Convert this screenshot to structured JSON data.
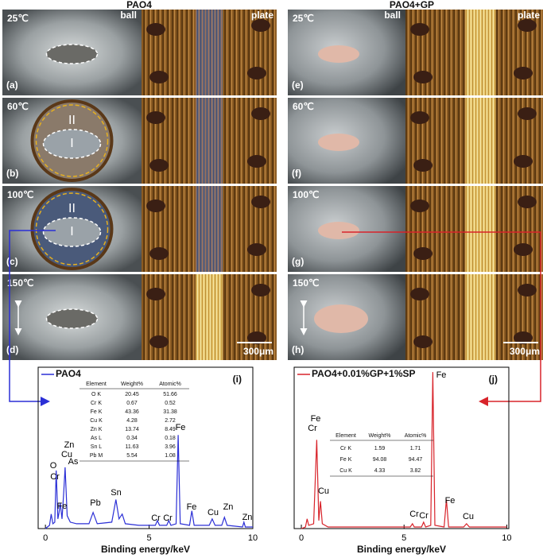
{
  "panels": [
    {
      "title": "PAO4",
      "col_labels": [
        "ball",
        "plate"
      ],
      "scale": "300μm",
      "rows": [
        {
          "temp": "25℃",
          "tag": "(a)"
        },
        {
          "temp": "60℃",
          "tag": "(b)",
          "zones": [
            "II",
            "I"
          ]
        },
        {
          "temp": "100℃",
          "tag": "(c)",
          "zones": [
            "II",
            "I"
          ]
        },
        {
          "temp": "150℃",
          "tag": "(d)"
        }
      ]
    },
    {
      "title": "PAO4+GP",
      "col_labels": [
        "ball",
        "plate"
      ],
      "scale": "300μm",
      "rows": [
        {
          "temp": "25℃",
          "tag": "(e)"
        },
        {
          "temp": "60℃",
          "tag": "(f)"
        },
        {
          "temp": "100℃",
          "tag": "(g)"
        },
        {
          "temp": "150℃",
          "tag": "(h)"
        }
      ]
    }
  ],
  "charts": [
    {
      "type": "line",
      "tag": "(i)",
      "xlabel": "Binding energy/keV",
      "xlim": [
        -0.35,
        10
      ],
      "xticks": [
        0,
        5,
        10
      ],
      "ylim": [
        0,
        100
      ],
      "series": [
        {
          "name": "PAO4",
          "color": "#2b2fd6",
          "x": [
            0,
            0.2,
            0.28,
            0.36,
            0.45,
            0.52,
            0.6,
            0.66,
            0.71,
            0.8,
            0.88,
            0.95,
            1.05,
            1.2,
            1.5,
            2.1,
            2.3,
            2.5,
            3.2,
            3.4,
            3.55,
            3.7,
            3.85,
            4.5,
            5.3,
            5.4,
            5.5,
            5.85,
            5.95,
            6.05,
            6.3,
            6.4,
            6.5,
            6.95,
            7.06,
            7.17,
            7.9,
            8.04,
            8.18,
            8.5,
            8.63,
            8.76,
            9.5,
            9.57,
            9.64,
            10
          ],
          "values": [
            0,
            2,
            9,
            3,
            4,
            36,
            6,
            10,
            16,
            6,
            22,
            38,
            8,
            4,
            3,
            3,
            10,
            3,
            4,
            18,
            6,
            9,
            3,
            2,
            2,
            5,
            2,
            2,
            5,
            2,
            3,
            58,
            3,
            2,
            11,
            2,
            2,
            6,
            2,
            2,
            7,
            2,
            1,
            4,
            1,
            1
          ]
        }
      ],
      "peak_labels": [
        "O",
        "Cr",
        "Zn",
        "Cu",
        "As",
        "Fe",
        "Pb",
        "Sn",
        "Cr",
        "Cr",
        "Fe",
        "Fe",
        "Cu",
        "Zn",
        "Zn"
      ],
      "table": {
        "header": [
          "Element",
          "Weight%",
          "Atomic%"
        ],
        "rows": [
          [
            "O K",
            20.45,
            51.66
          ],
          [
            "Cr K",
            0.67,
            0.52
          ],
          [
            "Fe K",
            43.36,
            31.38
          ],
          [
            "Cu K",
            4.28,
            2.72
          ],
          [
            "Zn K",
            13.74,
            8.49
          ],
          [
            "As L",
            0.34,
            0.18
          ],
          [
            "Sn L",
            11.63,
            3.96
          ],
          [
            "Pb M",
            5.54,
            1.08
          ]
        ]
      }
    },
    {
      "type": "line",
      "tag": "(j)",
      "xlabel": "Binding energy/keV",
      "xlim": [
        -0.35,
        10.1
      ],
      "xticks": [
        0,
        5,
        10
      ],
      "ylim": [
        0,
        100
      ],
      "series": [
        {
          "name": "PAO4+0.01%GP+1%SP",
          "color": "#d8232a",
          "x": [
            0,
            0.2,
            0.28,
            0.36,
            0.6,
            0.75,
            0.85,
            0.93,
            1.02,
            1.3,
            5.3,
            5.41,
            5.5,
            5.85,
            5.95,
            6.05,
            6.3,
            6.4,
            6.5,
            6.95,
            7.06,
            7.17,
            7.9,
            8.04,
            8.18,
            10
          ],
          "values": [
            0,
            1,
            6,
            2,
            3,
            55,
            5,
            17,
            3,
            1,
            1,
            3,
            1,
            1,
            4,
            1,
            2,
            97,
            2,
            1,
            18,
            1,
            1,
            3,
            1,
            1
          ]
        }
      ],
      "peak_labels": [
        "Fe",
        "Cr",
        "Cu",
        "Cr",
        "Cr",
        "Fe",
        "Fe",
        "Cu"
      ],
      "table": {
        "header": [
          "Element",
          "Weight%",
          "Atomic%"
        ],
        "rows": [
          [
            "Cr K",
            1.59,
            1.71
          ],
          [
            "Fe K",
            94.08,
            94.47
          ],
          [
            "Cu K",
            4.33,
            3.82
          ]
        ]
      }
    }
  ]
}
